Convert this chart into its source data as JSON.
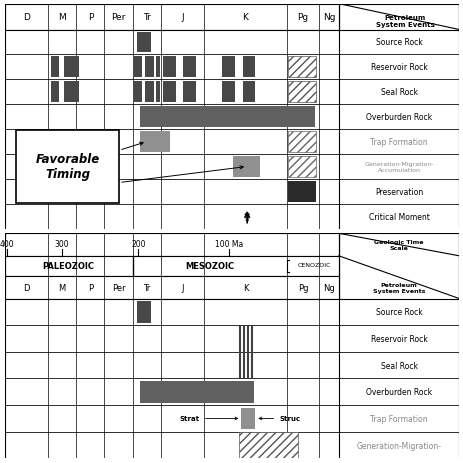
{
  "fig_width": 4.64,
  "fig_height": 4.64,
  "bg_color": "#ffffff",
  "top": {
    "period_names": [
      "D",
      "M",
      "P",
      "Per",
      "Tr",
      "J",
      "K",
      "Pg",
      "Ng"
    ],
    "period_raw_widths": [
      1.0,
      0.65,
      0.65,
      0.65,
      0.65,
      1.0,
      1.9,
      0.75,
      0.45
    ],
    "header_label": "Petroleum\nSystem Events",
    "row_labels": [
      "Source Rock",
      "Reservoir Rock",
      "Seal Rock",
      "Overburden Rock",
      "Trap Formation",
      "Generation-Migration-\nAccumulation",
      "Preservation",
      "Critical Moment"
    ],
    "row_label_colors": [
      "#000000",
      "#000000",
      "#000000",
      "#000000",
      "#888888",
      "#888888",
      "#000000",
      "#000000"
    ],
    "dark_gray": "#505050",
    "med_gray": "#888888",
    "light_gray": "#aaaaaa",
    "black": "#000000"
  },
  "bottom": {
    "period_names": [
      "D",
      "M",
      "P",
      "Per",
      "Tr",
      "J",
      "K",
      "Pg",
      "Ng"
    ],
    "period_raw_widths": [
      1.0,
      0.65,
      0.65,
      0.65,
      0.65,
      1.0,
      1.9,
      0.75,
      0.45
    ],
    "time_labels": [
      "400",
      "300",
      "200",
      "100 Ma"
    ],
    "era_labels": [
      "PALEOZOIC",
      "MESOZOIC",
      "CENOZOIC"
    ],
    "geo_time_label": "Geologic Time\nScale",
    "petroleum_label": "Petroleum\nSystem Events",
    "row_labels": [
      "Source Rock",
      "Reservoir Rock",
      "Seal Rock",
      "Overburden Rock",
      "Trap Formation",
      "Generation-Migration-"
    ],
    "row_label_colors": [
      "#000000",
      "#000000",
      "#000000",
      "#000000",
      "#888888",
      "#888888"
    ],
    "dark_gray": "#505050",
    "med_gray": "#888888"
  }
}
